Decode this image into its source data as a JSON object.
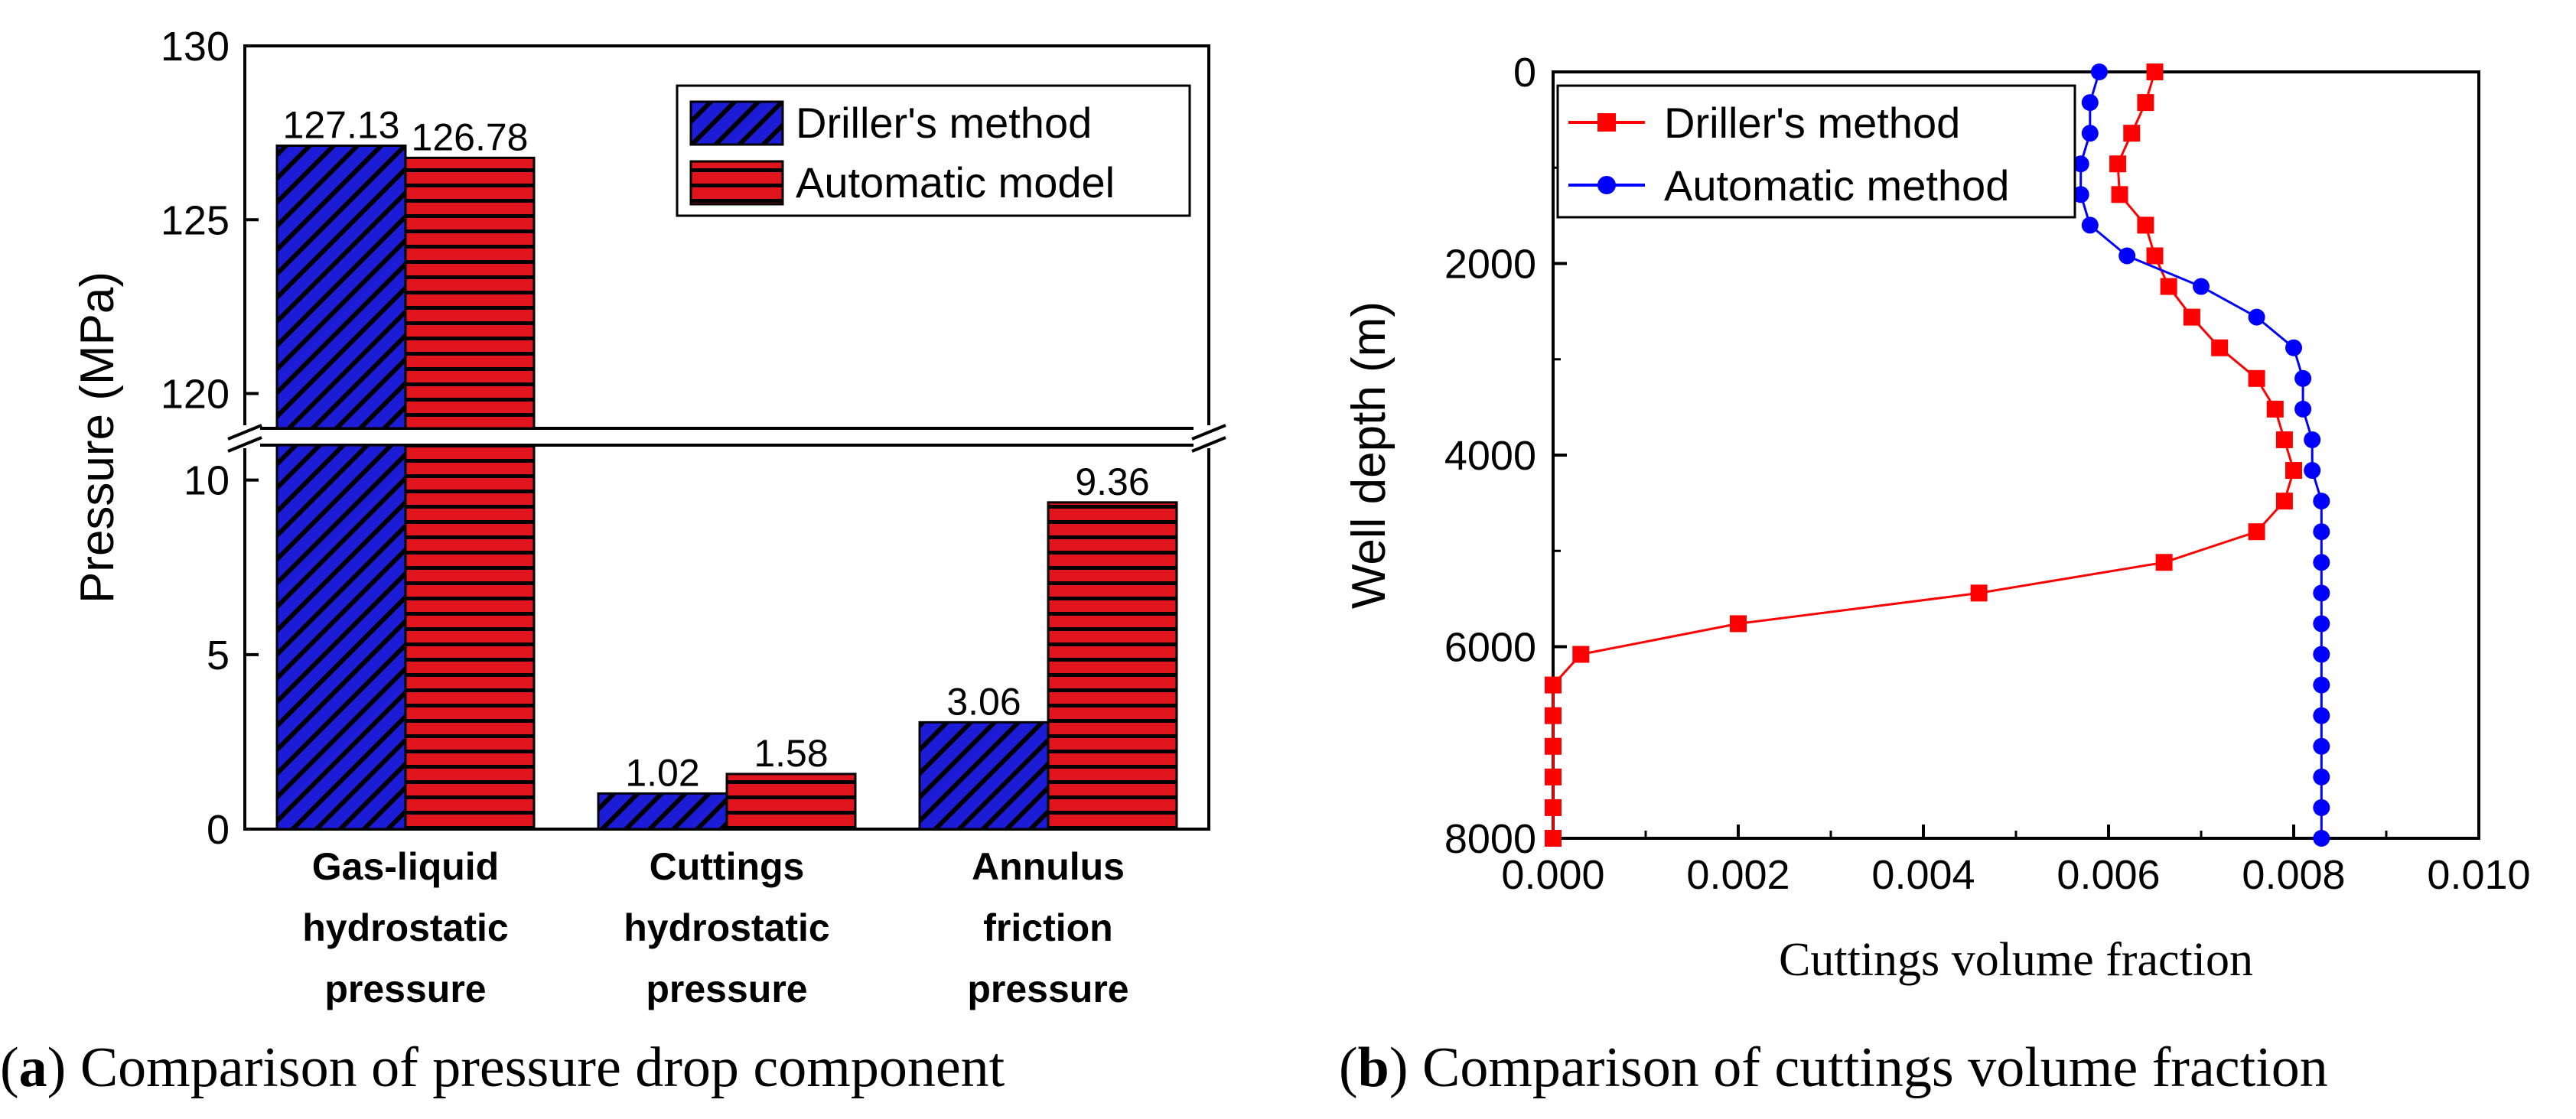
{
  "chart_data": [
    {
      "type": "bar",
      "title": "",
      "ylabel": "Pressure (MPa)",
      "xlabel": "",
      "categories": [
        [
          "Gas-liquid",
          "hydrostatic",
          "pressure"
        ],
        [
          "Cuttings",
          "hydrostatic",
          "pressure"
        ],
        [
          "Annulus",
          "friction",
          "pressure"
        ]
      ],
      "series": [
        {
          "name": "Driller's method",
          "values": [
            127.13,
            1.02,
            3.06
          ],
          "labels": [
            "127.13",
            "1.02",
            "3.06"
          ],
          "color": "#1c1cd6",
          "pattern": "diagonal"
        },
        {
          "name": "Automatic model",
          "values": [
            126.78,
            1.58,
            9.36
          ],
          "labels": [
            "126.78",
            "1.58",
            "9.36"
          ],
          "color": "#e0141c",
          "pattern": "horizontal"
        }
      ],
      "y_axis_break": {
        "lower_range": [
          0,
          11
        ],
        "upper_range": [
          119,
          130
        ]
      },
      "lower_ticks": [
        0,
        5,
        10
      ],
      "upper_ticks": [
        120,
        125,
        130
      ],
      "legend_position": "top-right",
      "caption_letter": "a",
      "caption_text": " Comparison of pressure drop component"
    },
    {
      "type": "line",
      "title": "",
      "xlabel": "Cuttings volume fraction",
      "ylabel": "Well depth (m)",
      "xlim": [
        0,
        0.01
      ],
      "ylim": [
        0,
        8000
      ],
      "y_inverted": true,
      "x_ticks": [
        "0.000",
        "0.002",
        "0.004",
        "0.006",
        "0.008",
        "0.010"
      ],
      "y_ticks": [
        "0",
        "2000",
        "4000",
        "6000",
        "8000"
      ],
      "legend_position": "top-left",
      "series": [
        {
          "name": "Driller's method",
          "color": "#ff0000",
          "marker": "square",
          "points": [
            [
              0.0065,
              0
            ],
            [
              0.0064,
              320
            ],
            [
              0.00625,
              640
            ],
            [
              0.0061,
              960
            ],
            [
              0.00612,
              1280
            ],
            [
              0.0064,
              1600
            ],
            [
              0.0065,
              1920
            ],
            [
              0.00665,
              2240
            ],
            [
              0.0069,
              2560
            ],
            [
              0.0072,
              2880
            ],
            [
              0.0076,
              3200
            ],
            [
              0.0078,
              3520
            ],
            [
              0.0079,
              3840
            ],
            [
              0.008,
              4160
            ],
            [
              0.0079,
              4480
            ],
            [
              0.0076,
              4800
            ],
            [
              0.0066,
              5120
            ],
            [
              0.0046,
              5440
            ],
            [
              0.002,
              5760
            ],
            [
              0.0003,
              6080
            ],
            [
              0.0,
              6400
            ],
            [
              0.0,
              6720
            ],
            [
              0.0,
              7040
            ],
            [
              0.0,
              7360
            ],
            [
              0.0,
              7680
            ],
            [
              0.0,
              8000
            ]
          ]
        },
        {
          "name": "Automatic method",
          "color": "#0000ff",
          "marker": "circle",
          "points": [
            [
              0.0059,
              0
            ],
            [
              0.0058,
              320
            ],
            [
              0.0058,
              640
            ],
            [
              0.0057,
              960
            ],
            [
              0.0057,
              1280
            ],
            [
              0.0058,
              1600
            ],
            [
              0.0062,
              1920
            ],
            [
              0.007,
              2240
            ],
            [
              0.0076,
              2560
            ],
            [
              0.008,
              2880
            ],
            [
              0.0081,
              3200
            ],
            [
              0.0081,
              3520
            ],
            [
              0.0082,
              3840
            ],
            [
              0.0082,
              4160
            ],
            [
              0.0083,
              4480
            ],
            [
              0.0083,
              4800
            ],
            [
              0.0083,
              5120
            ],
            [
              0.0083,
              5440
            ],
            [
              0.0083,
              5760
            ],
            [
              0.0083,
              6080
            ],
            [
              0.0083,
              6400
            ],
            [
              0.0083,
              6720
            ],
            [
              0.0083,
              7040
            ],
            [
              0.0083,
              7360
            ],
            [
              0.0083,
              7680
            ],
            [
              0.0083,
              8000
            ]
          ]
        }
      ],
      "caption_letter": "b",
      "caption_text": " Comparison of cuttings volume fraction"
    }
  ]
}
